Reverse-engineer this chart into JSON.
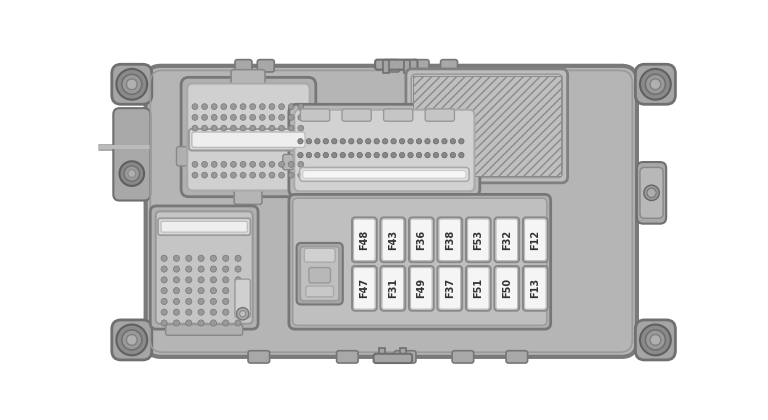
{
  "bg_color": "#ffffff",
  "body_fc": "#b5b5b5",
  "body_ec": "#7a7a7a",
  "panel_fc": "#c2c2c2",
  "panel_fc2": "#cbcbcb",
  "dark_fc": "#9a9a9a",
  "light_fc": "#d8d8d8",
  "fuse_fc": "#e8e8e8",
  "fuse_ec": "#888888",
  "fuse_inner_fc": "#f5f5f5",
  "mount_fc": "#a8a8a8",
  "mount_ec": "#707070",
  "connector_fc": "#c8c8c8",
  "connector_ec": "#888888",
  "pin_color": "#909090",
  "slot_fc": "#e2e2e2",
  "hatch_ec": "#909090",
  "text_color": "#333333",
  "fuse_top_row": [
    "F48",
    "F43",
    "F36",
    "F38",
    "F53",
    "F32",
    "F12"
  ],
  "fuse_bot_row": [
    "F47",
    "F31",
    "F49",
    "F37",
    "F51",
    "F50",
    "F13"
  ]
}
